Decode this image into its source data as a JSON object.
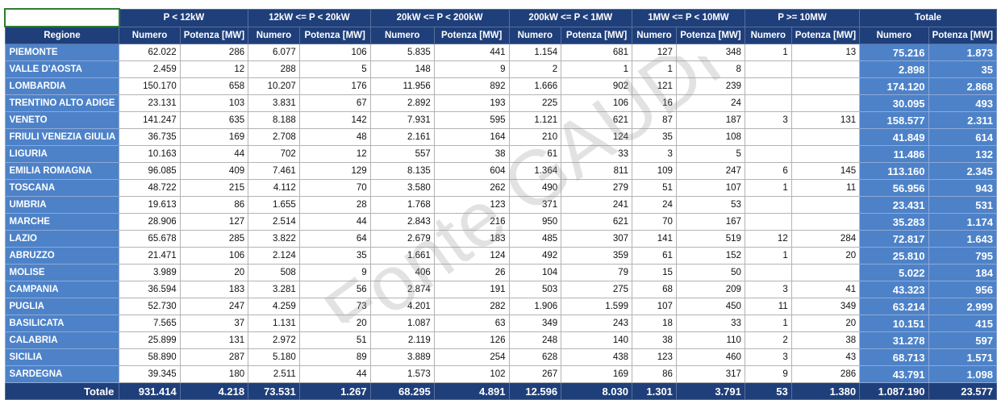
{
  "watermark": "Fonte GAUDI",
  "header": {
    "regione": "Regione",
    "numero": "Numero",
    "potenza": "Potenza [MW]",
    "groups": [
      "P < 12kW",
      "12kW <= P < 20kW",
      "20kW <= P < 200kW",
      "200kW <= P < 1MW",
      "1MW <= P < 10MW",
      "P >= 10MW",
      "Totale"
    ]
  },
  "rows": [
    {
      "region": "PIEMONTE",
      "v": [
        "62.022",
        "286",
        "6.077",
        "106",
        "5.835",
        "441",
        "1.154",
        "681",
        "127",
        "348",
        "1",
        "13"
      ],
      "tn": "75.216",
      "tp": "1.873"
    },
    {
      "region": "VALLE D'AOSTA",
      "v": [
        "2.459",
        "12",
        "288",
        "5",
        "148",
        "9",
        "2",
        "1",
        "1",
        "8",
        "",
        ""
      ],
      "tn": "2.898",
      "tp": "35"
    },
    {
      "region": "LOMBARDIA",
      "v": [
        "150.170",
        "658",
        "10.207",
        "176",
        "11.956",
        "892",
        "1.666",
        "902",
        "121",
        "239",
        "",
        ""
      ],
      "tn": "174.120",
      "tp": "2.868"
    },
    {
      "region": "TRENTINO ALTO ADIGE",
      "v": [
        "23.131",
        "103",
        "3.831",
        "67",
        "2.892",
        "193",
        "225",
        "106",
        "16",
        "24",
        "",
        ""
      ],
      "tn": "30.095",
      "tp": "493"
    },
    {
      "region": "VENETO",
      "v": [
        "141.247",
        "635",
        "8.188",
        "142",
        "7.931",
        "595",
        "1.121",
        "621",
        "87",
        "187",
        "3",
        "131"
      ],
      "tn": "158.577",
      "tp": "2.311"
    },
    {
      "region": "FRIULI VENEZIA GIULIA",
      "v": [
        "36.735",
        "169",
        "2.708",
        "48",
        "2.161",
        "164",
        "210",
        "124",
        "35",
        "108",
        "",
        ""
      ],
      "tn": "41.849",
      "tp": "614"
    },
    {
      "region": "LIGURIA",
      "v": [
        "10.163",
        "44",
        "702",
        "12",
        "557",
        "38",
        "61",
        "33",
        "3",
        "5",
        "",
        ""
      ],
      "tn": "11.486",
      "tp": "132"
    },
    {
      "region": "EMILIA ROMAGNA",
      "v": [
        "96.085",
        "409",
        "7.461",
        "129",
        "8.135",
        "604",
        "1.364",
        "811",
        "109",
        "247",
        "6",
        "145"
      ],
      "tn": "113.160",
      "tp": "2.345"
    },
    {
      "region": "TOSCANA",
      "v": [
        "48.722",
        "215",
        "4.112",
        "70",
        "3.580",
        "262",
        "490",
        "279",
        "51",
        "107",
        "1",
        "11"
      ],
      "tn": "56.956",
      "tp": "943"
    },
    {
      "region": "UMBRIA",
      "v": [
        "19.613",
        "86",
        "1.655",
        "28",
        "1.768",
        "123",
        "371",
        "241",
        "24",
        "53",
        "",
        ""
      ],
      "tn": "23.431",
      "tp": "531"
    },
    {
      "region": "MARCHE",
      "v": [
        "28.906",
        "127",
        "2.514",
        "44",
        "2.843",
        "216",
        "950",
        "621",
        "70",
        "167",
        "",
        ""
      ],
      "tn": "35.283",
      "tp": "1.174"
    },
    {
      "region": "LAZIO",
      "v": [
        "65.678",
        "285",
        "3.822",
        "64",
        "2.679",
        "183",
        "485",
        "307",
        "141",
        "519",
        "12",
        "284"
      ],
      "tn": "72.817",
      "tp": "1.643"
    },
    {
      "region": "ABRUZZO",
      "v": [
        "21.471",
        "106",
        "2.124",
        "35",
        "1.661",
        "124",
        "492",
        "359",
        "61",
        "152",
        "1",
        "20"
      ],
      "tn": "25.810",
      "tp": "795"
    },
    {
      "region": "MOLISE",
      "v": [
        "3.989",
        "20",
        "508",
        "9",
        "406",
        "26",
        "104",
        "79",
        "15",
        "50",
        "",
        ""
      ],
      "tn": "5.022",
      "tp": "184"
    },
    {
      "region": "CAMPANIA",
      "v": [
        "36.594",
        "183",
        "3.281",
        "56",
        "2.874",
        "191",
        "503",
        "275",
        "68",
        "209",
        "3",
        "41"
      ],
      "tn": "43.323",
      "tp": "956"
    },
    {
      "region": "PUGLIA",
      "v": [
        "52.730",
        "247",
        "4.259",
        "73",
        "4.201",
        "282",
        "1.906",
        "1.599",
        "107",
        "450",
        "11",
        "349"
      ],
      "tn": "63.214",
      "tp": "2.999"
    },
    {
      "region": "BASILICATA",
      "v": [
        "7.565",
        "37",
        "1.131",
        "20",
        "1.087",
        "63",
        "349",
        "243",
        "18",
        "33",
        "1",
        "20"
      ],
      "tn": "10.151",
      "tp": "415"
    },
    {
      "region": "CALABRIA",
      "v": [
        "25.899",
        "131",
        "2.972",
        "51",
        "2.119",
        "126",
        "248",
        "140",
        "38",
        "110",
        "2",
        "38"
      ],
      "tn": "31.278",
      "tp": "597"
    },
    {
      "region": "SICILIA",
      "v": [
        "58.890",
        "287",
        "5.180",
        "89",
        "3.889",
        "254",
        "628",
        "438",
        "123",
        "460",
        "3",
        "43"
      ],
      "tn": "68.713",
      "tp": "1.571"
    },
    {
      "region": "SARDEGNA",
      "v": [
        "39.345",
        "180",
        "2.511",
        "44",
        "1.573",
        "102",
        "267",
        "169",
        "86",
        "317",
        "9",
        "286"
      ],
      "tn": "43.791",
      "tp": "1.098"
    }
  ],
  "footer": {
    "label": "Totale",
    "v": [
      "931.414",
      "4.218",
      "73.531",
      "1.267",
      "68.295",
      "4.891",
      "12.596",
      "8.030",
      "1.301",
      "3.791",
      "53",
      "1.380"
    ],
    "tn": "1.087.190",
    "tp": "23.577"
  }
}
